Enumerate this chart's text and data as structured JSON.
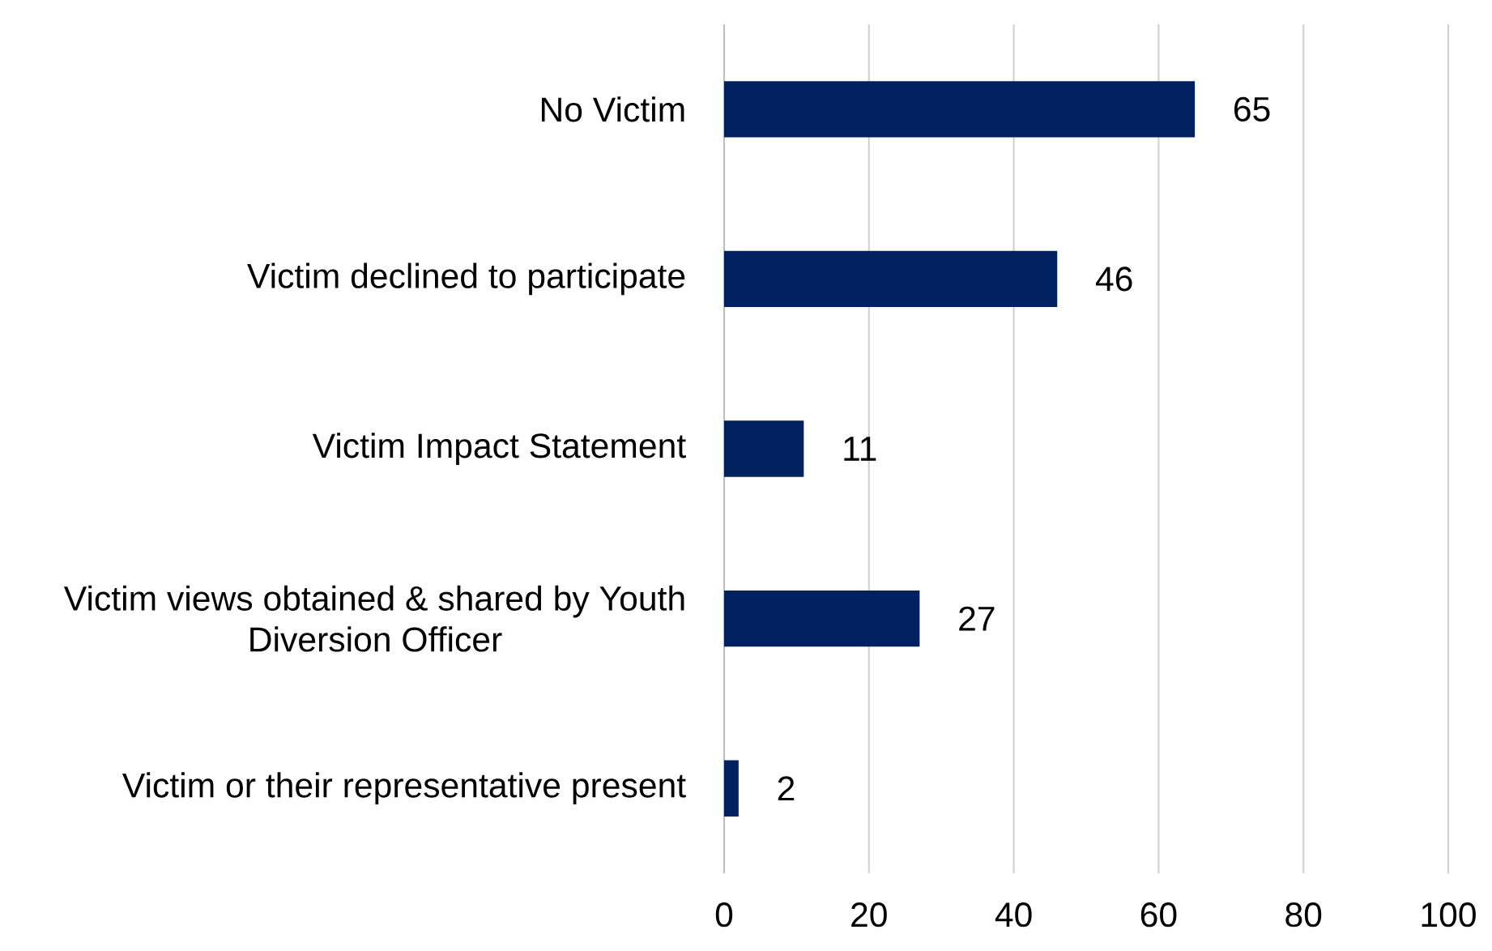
{
  "chart_data": {
    "type": "bar",
    "orientation": "horizontal",
    "categories": [
      "No Victim",
      "Victim declined to participate",
      "Victim Impact Statement",
      "Victim views obtained & shared by Youth Diversion Officer",
      "Victim or their representative present"
    ],
    "values": [
      65,
      46,
      11,
      27,
      2
    ],
    "color": "#002060",
    "xlim": [
      0,
      100
    ],
    "xticks": [
      0,
      20,
      40,
      60,
      80,
      100
    ],
    "grid": "x",
    "data_labels": true
  }
}
